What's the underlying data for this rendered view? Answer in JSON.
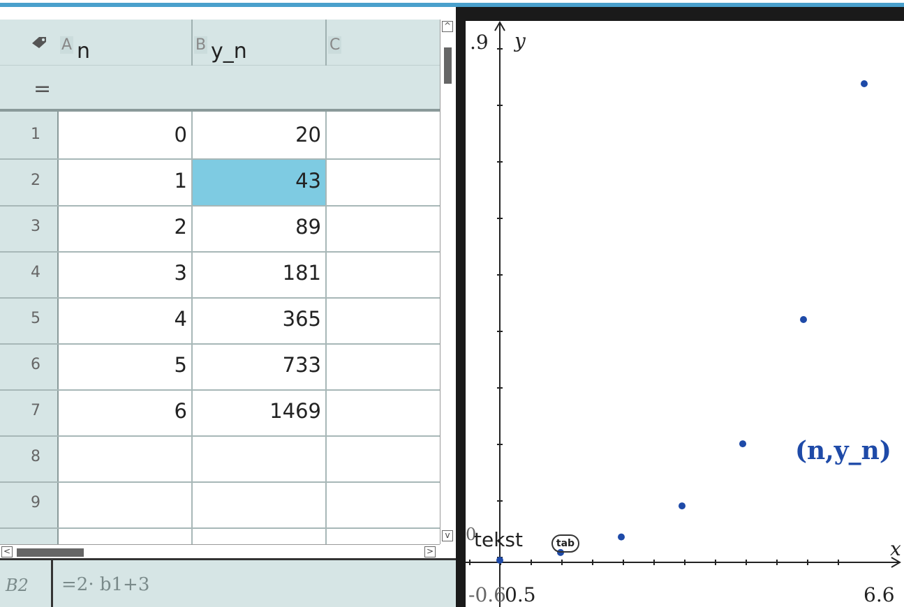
{
  "spreadsheet": {
    "columns": [
      {
        "letter": "A",
        "name": "n"
      },
      {
        "letter": "B",
        "name": "y_n"
      },
      {
        "letter": "C",
        "name": ""
      }
    ],
    "formula_row_symbol": "=",
    "rows": [
      {
        "num": "1",
        "a": "0",
        "b": "20"
      },
      {
        "num": "2",
        "a": "1",
        "b": "43"
      },
      {
        "num": "3",
        "a": "2",
        "b": "89"
      },
      {
        "num": "4",
        "a": "3",
        "b": "181"
      },
      {
        "num": "5",
        "a": "4",
        "b": "365"
      },
      {
        "num": "6",
        "a": "5",
        "b": "733"
      },
      {
        "num": "7",
        "a": "6",
        "b": "1469"
      },
      {
        "num": "8",
        "a": "",
        "b": ""
      },
      {
        "num": "9",
        "a": "",
        "b": ""
      }
    ],
    "selected_cell": "B2",
    "entry_line": {
      "ref": "B2",
      "formula": "=2· b1+3"
    }
  },
  "graph": {
    "x_axis_label": "x",
    "y_axis_label": "y",
    "y_max_label": ".9",
    "y_origin_label": "0",
    "x_min_label": "-0.6",
    "x_tick_label": "0.5",
    "x_max_label": "6.6",
    "text_tool_label": "tekst",
    "tab_badge": "tab",
    "plot_label": "(n,y_n)",
    "point_color": "#1e4aa8"
  },
  "chart_data": {
    "type": "scatter",
    "x": [
      0,
      1,
      2,
      3,
      4,
      5,
      6
    ],
    "y": [
      20,
      43,
      89,
      181,
      365,
      733,
      1469
    ],
    "xlim": [
      -0.6,
      6.6
    ],
    "series": [
      {
        "name": "(n,y_n)",
        "x": [
          0,
          1,
          2,
          3,
          4,
          5,
          6
        ],
        "y": [
          20,
          43,
          89,
          181,
          365,
          733,
          1469
        ]
      }
    ]
  }
}
